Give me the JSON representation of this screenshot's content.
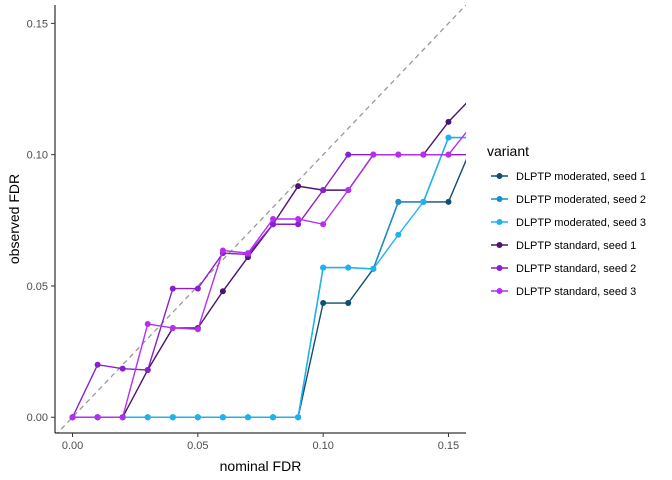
{
  "chart_data": {
    "type": "line",
    "xlabel": "nominal FDR",
    "ylabel": "observed FDR",
    "xlim": [
      -0.007,
      0.157
    ],
    "ylim": [
      -0.006,
      0.157
    ],
    "xticks": [
      0.0,
      0.05,
      0.1,
      0.15
    ],
    "xtick_labels": [
      "0.00",
      "0.05",
      "0.10",
      "0.15"
    ],
    "yticks": [
      0.0,
      0.05,
      0.1,
      0.15
    ],
    "ytick_labels": [
      "0.00",
      "0.05",
      "0.10",
      "0.15"
    ],
    "grid": false,
    "reference_line": {
      "slope": 1,
      "intercept": 0,
      "style": "dashed",
      "color": "#999999"
    },
    "legend": {
      "title": "variant",
      "placement": "right"
    },
    "series": [
      {
        "name": "DLPTP moderated, seed 1",
        "color": "#0e4f73",
        "x": [
          0.0,
          0.01,
          0.02,
          0.03,
          0.04,
          0.05,
          0.06,
          0.07,
          0.08,
          0.09,
          0.1,
          0.11,
          0.12,
          0.13,
          0.14,
          0.15,
          0.16
        ],
        "y": [
          0.0,
          0.0,
          0.0,
          0.0,
          0.0,
          0.0,
          0.0,
          0.0,
          0.0,
          0.0,
          0.0435,
          0.0435,
          0.0565,
          0.082,
          0.082,
          0.082,
          0.1045
        ]
      },
      {
        "name": "DLPTP moderated, seed 2",
        "color": "#1a8fc9",
        "x": [
          0.0,
          0.01,
          0.02,
          0.03,
          0.04,
          0.05,
          0.06,
          0.07,
          0.08,
          0.09,
          0.1,
          0.11,
          0.12,
          0.13,
          0.14,
          0.15,
          0.16
        ],
        "y": [
          0.0,
          0.0,
          0.0,
          0.0,
          0.0,
          0.0,
          0.0,
          0.0,
          0.0,
          0.0,
          0.057,
          0.057,
          0.0565,
          0.082,
          0.082,
          0.1065,
          0.1065
        ]
      },
      {
        "name": "DLPTP moderated, seed 3",
        "color": "#1fb2f0",
        "x": [
          0.0,
          0.01,
          0.02,
          0.03,
          0.04,
          0.05,
          0.06,
          0.07,
          0.08,
          0.09,
          0.1,
          0.11,
          0.12,
          0.13,
          0.14,
          0.15,
          0.16
        ],
        "y": [
          0.0,
          0.0,
          0.0,
          0.0,
          0.0,
          0.0,
          0.0,
          0.0,
          0.0,
          0.0,
          0.057,
          0.057,
          0.0565,
          0.0695,
          0.082,
          0.1065,
          0.1065
        ]
      },
      {
        "name": "DLPTP standard, seed 1",
        "color": "#4d1370",
        "x": [
          0.0,
          0.01,
          0.02,
          0.03,
          0.04,
          0.05,
          0.06,
          0.07,
          0.08,
          0.09,
          0.1,
          0.11,
          0.12,
          0.13,
          0.14,
          0.15,
          0.16
        ],
        "y": [
          0.0,
          0.0,
          0.0,
          0.018,
          0.034,
          0.034,
          0.048,
          0.061,
          0.0735,
          0.088,
          0.0865,
          0.0865,
          0.1,
          0.1,
          0.1,
          0.1125,
          0.1225
        ]
      },
      {
        "name": "DLPTP standard, seed 2",
        "color": "#8a1fce",
        "x": [
          0.0,
          0.01,
          0.02,
          0.03,
          0.04,
          0.05,
          0.06,
          0.07,
          0.08,
          0.09,
          0.1,
          0.11,
          0.12,
          0.13,
          0.14,
          0.15,
          0.16
        ],
        "y": [
          0.0,
          0.02,
          0.0185,
          0.018,
          0.049,
          0.049,
          0.0625,
          0.062,
          0.0735,
          0.0735,
          0.0865,
          0.1,
          0.1,
          0.1,
          0.1,
          0.1,
          0.1
        ]
      },
      {
        "name": "DLPTP standard, seed 3",
        "color": "#b62ff0",
        "x": [
          0.0,
          0.01,
          0.02,
          0.03,
          0.04,
          0.05,
          0.06,
          0.07,
          0.08,
          0.09,
          0.1,
          0.11,
          0.12,
          0.13,
          0.14,
          0.15,
          0.16
        ],
        "y": [
          0.0,
          0.0,
          0.0,
          0.0355,
          0.034,
          0.0335,
          0.0635,
          0.0625,
          0.0755,
          0.0755,
          0.0735,
          0.0865,
          0.1,
          0.1,
          0.1,
          0.1,
          0.112
        ]
      }
    ]
  }
}
